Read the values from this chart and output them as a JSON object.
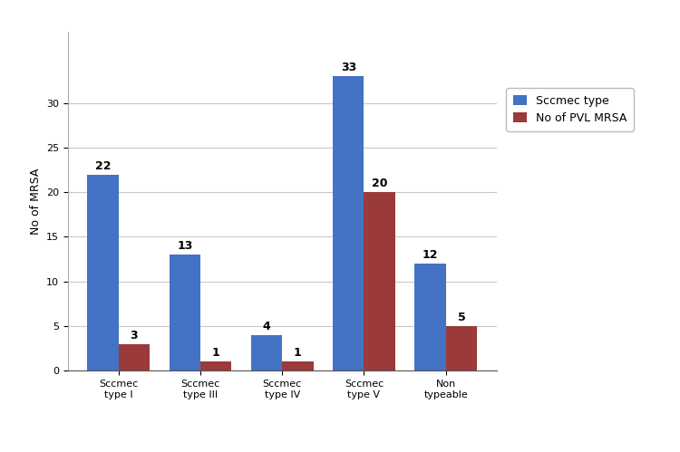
{
  "categories": [
    "Sccmec\ntype I",
    "Sccmec\ntype III",
    "Sccmec\ntype IV",
    "Sccmec\ntype V",
    "Non\ntypeable"
  ],
  "sccmec_values": [
    22,
    13,
    4,
    33,
    12
  ],
  "pvl_values": [
    3,
    1,
    1,
    20,
    5
  ],
  "bar_color_sccmec": "#4472C4",
  "bar_color_pvl": "#9B3A3A",
  "legend_labels": [
    "Sccmec type",
    "No of PVL MRSA"
  ],
  "ylabel": "No of MRSA",
  "ylim": [
    0,
    38
  ],
  "yticks": [
    0,
    5,
    10,
    15,
    20,
    25,
    30
  ],
  "bar_width": 0.38,
  "label_fontsize": 9,
  "tick_fontsize": 8,
  "legend_fontsize": 9,
  "background_color": "#ffffff",
  "grid_color": "#c8c8c8"
}
